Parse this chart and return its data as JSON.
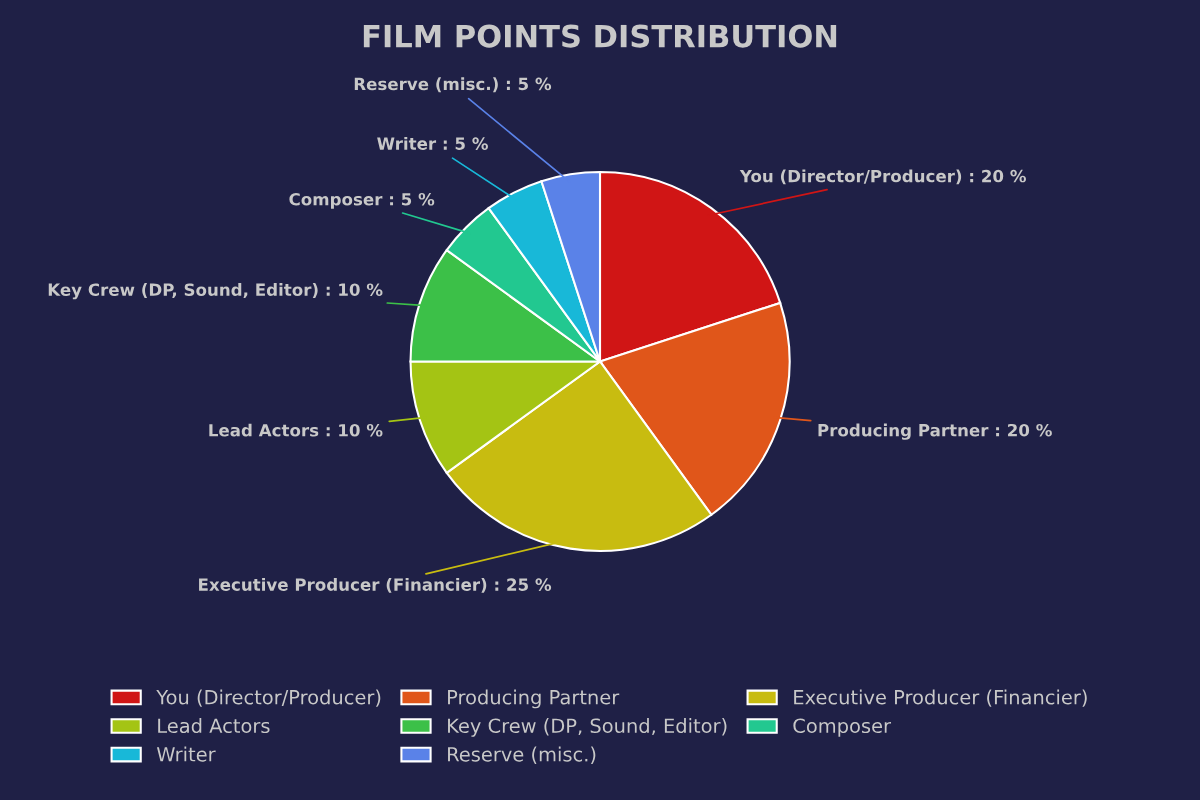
{
  "chart_data": {
    "type": "pie",
    "title": "FILM POINTS DISTRIBUTION",
    "categories": [
      "You (Director/Producer)",
      "Producing Partner",
      "Executive Producer (Financier)",
      "Lead Actors",
      "Key Crew (DP, Sound, Editor)",
      "Composer",
      "Writer",
      "Reserve (misc.)"
    ],
    "values": [
      20,
      20,
      25,
      10,
      10,
      5,
      5,
      5
    ],
    "colors": [
      "#d01515",
      "#e0561a",
      "#c8bc10",
      "#a4c414",
      "#3cc048",
      "#22c890",
      "#18b8d8",
      "#5a82e8"
    ],
    "value_labels": [
      "You (Director/Producer) : 20 %",
      "Producing Partner : 20 %",
      "Executive Producer (Financier) : 25 %",
      "Lead Actors : 10 %",
      "Key Crew (DP, Sound, Editor) : 10 %",
      "Composer : 5 %",
      "Writer : 5 %",
      "Reserve (misc.) : 5 %"
    ],
    "legend": "bottom"
  }
}
